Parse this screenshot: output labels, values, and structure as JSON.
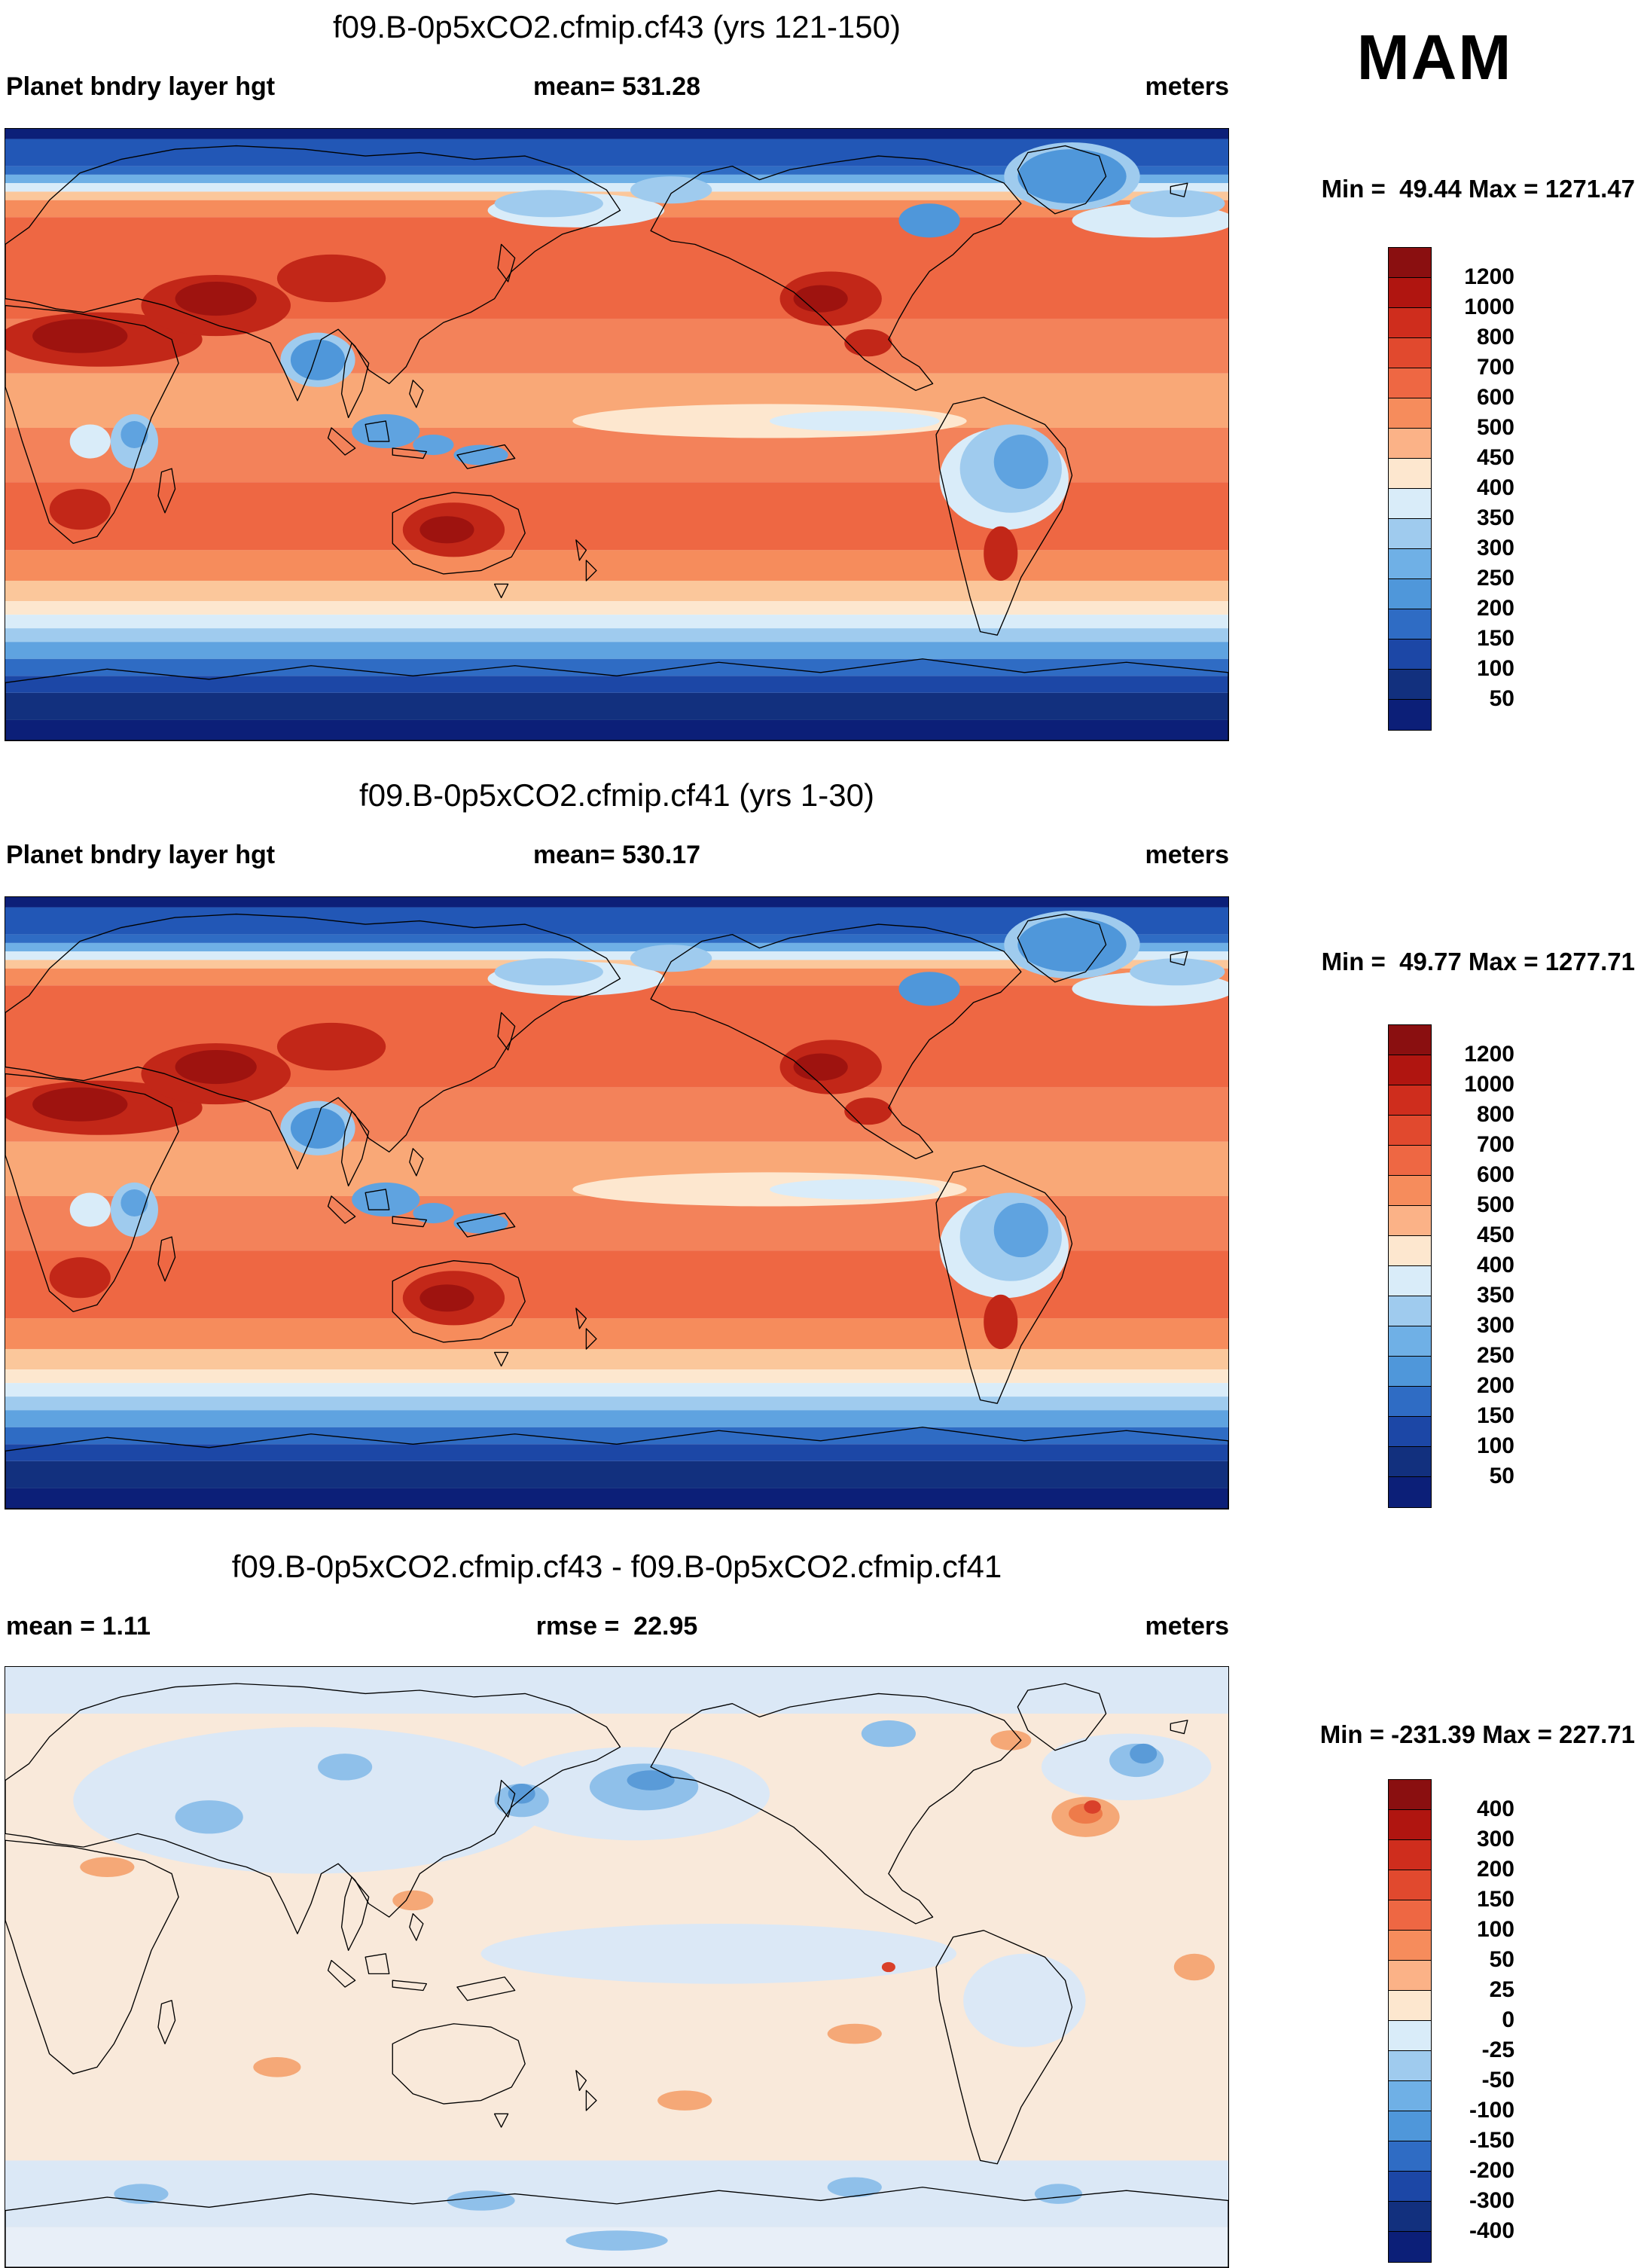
{
  "season": "MAM",
  "panels": [
    {
      "title": "f09.B-0p5xCO2.cfmip.cf43 (yrs 121-150)",
      "left_label": "Planet bndry layer hgt",
      "center_label": "mean= 531.28",
      "units_label": "meters",
      "minmax_label": "Min =  49.44 Max = 1271.47"
    },
    {
      "title": "f09.B-0p5xCO2.cfmip.cf41 (yrs 1-30)",
      "left_label": "Planet bndry layer hgt",
      "center_label": "mean= 530.17",
      "units_label": "meters",
      "minmax_label": "Min =  49.77 Max = 1277.71"
    },
    {
      "title": "f09.B-0p5xCO2.cfmip.cf43 - f09.B-0p5xCO2.cfmip.cf41",
      "left_label": "mean =   1.11",
      "center_label": "rmse =  22.95",
      "units_label": "meters",
      "minmax_label": "Min = -231.39 Max = 227.71"
    }
  ],
  "colorbars": [
    {
      "levels": [
        "1200",
        "1000",
        "800",
        "700",
        "600",
        "500",
        "450",
        "400",
        "350",
        "300",
        "250",
        "200",
        "150",
        "100",
        "50"
      ],
      "colors": [
        "#8a0f10",
        "#b01510",
        "#cf2d1d",
        "#e1492e",
        "#ee6743",
        "#f68c5c",
        "#fbb287",
        "#fde7cf",
        "#d9ecf9",
        "#9fcbee",
        "#6fb0e6",
        "#4f97da",
        "#2f6cc4",
        "#1c47a6",
        "#12307e",
        "#0c1f78"
      ]
    },
    {
      "levels": [
        "1200",
        "1000",
        "800",
        "700",
        "600",
        "500",
        "450",
        "400",
        "350",
        "300",
        "250",
        "200",
        "150",
        "100",
        "50"
      ],
      "colors": [
        "#8a0f10",
        "#b01510",
        "#cf2d1d",
        "#e1492e",
        "#ee6743",
        "#f68c5c",
        "#fbb287",
        "#fde7cf",
        "#d9ecf9",
        "#9fcbee",
        "#6fb0e6",
        "#4f97da",
        "#2f6cc4",
        "#1c47a6",
        "#12307e",
        "#0c1f78"
      ]
    },
    {
      "levels": [
        "400",
        "300",
        "200",
        "150",
        "100",
        "50",
        "25",
        "0",
        "-25",
        "-50",
        "-100",
        "-150",
        "-200",
        "-300",
        "-400"
      ],
      "colors": [
        "#8a0f10",
        "#b01510",
        "#cf2d1d",
        "#e1492e",
        "#ee6743",
        "#f68c5c",
        "#fbb287",
        "#fde7cf",
        "#d9ecf9",
        "#9fcbee",
        "#6fb0e6",
        "#4f97da",
        "#2f6cc4",
        "#1c47a6",
        "#12307e",
        "#0c1f78"
      ]
    }
  ],
  "chart_data": [
    {
      "type": "heatmap",
      "title": "f09.B-0p5xCO2.cfmip.cf43 (yrs 121-150)",
      "variable": "Planet bndry layer hgt",
      "season": "MAM",
      "units": "meters",
      "mean": 531.28,
      "min": 49.44,
      "max": 1271.47,
      "contour_levels": [
        50,
        100,
        150,
        200,
        250,
        300,
        350,
        400,
        450,
        500,
        600,
        700,
        800,
        1000,
        1200
      ],
      "projection": "global cylindrical lat-lon, Pacific-centered",
      "legend_position": "right"
    },
    {
      "type": "heatmap",
      "title": "f09.B-0p5xCO2.cfmip.cf41 (yrs 1-30)",
      "variable": "Planet bndry layer hgt",
      "season": "MAM",
      "units": "meters",
      "mean": 530.17,
      "min": 49.77,
      "max": 1277.71,
      "contour_levels": [
        50,
        100,
        150,
        200,
        250,
        300,
        350,
        400,
        450,
        500,
        600,
        700,
        800,
        1000,
        1200
      ],
      "projection": "global cylindrical lat-lon, Pacific-centered",
      "legend_position": "right"
    },
    {
      "type": "heatmap",
      "title": "f09.B-0p5xCO2.cfmip.cf43 - f09.B-0p5xCO2.cfmip.cf41",
      "units": "meters",
      "mean": 1.11,
      "rmse": 22.95,
      "min": -231.39,
      "max": 227.71,
      "contour_levels": [
        -400,
        -300,
        -200,
        -150,
        -100,
        -50,
        -25,
        0,
        25,
        50,
        100,
        150,
        200,
        300,
        400
      ],
      "projection": "global cylindrical lat-lon, Pacific-centered",
      "legend_position": "right"
    }
  ]
}
